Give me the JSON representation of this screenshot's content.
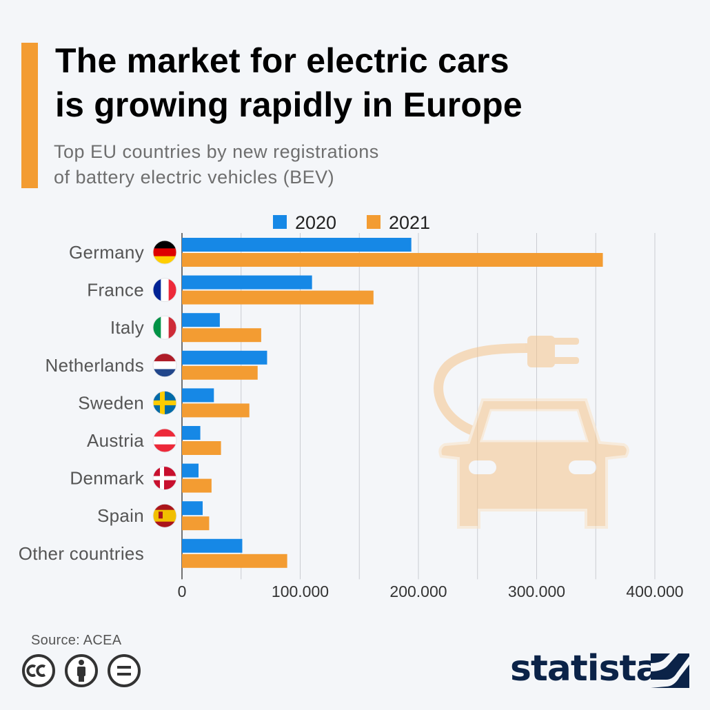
{
  "title_line1": "The market for electric cars",
  "title_line2": "is growing rapidly in Europe",
  "subtitle_line1": "Top EU countries by new registrations",
  "subtitle_line2": "of battery electric vehicles (BEV)",
  "source": "Source: ACEA",
  "brand": "statista",
  "colors": {
    "accent": "#f39c32",
    "series_2020": "#1688e6",
    "series_2021": "#f39c32",
    "brand": "#0b2348"
  },
  "chart_data": {
    "type": "bar",
    "orientation": "horizontal",
    "categories": [
      "Germany",
      "France",
      "Italy",
      "Netherlands",
      "Sweden",
      "Austria",
      "Denmark",
      "Spain",
      "Other countries"
    ],
    "flags": [
      "germany-flag",
      "france-flag",
      "italy-flag",
      "netherlands-flag",
      "sweden-flag",
      "austria-flag",
      "denmark-flag",
      "spain-flag",
      ""
    ],
    "series": [
      {
        "name": "2020",
        "values": [
          194000,
          110000,
          32000,
          72000,
          27000,
          15500,
          14000,
          17500,
          51000
        ]
      },
      {
        "name": "2021",
        "values": [
          356000,
          162000,
          67000,
          64000,
          57000,
          33000,
          25000,
          23000,
          89000
        ]
      }
    ],
    "xlim": [
      0,
      400000
    ],
    "xticks": [
      0,
      100000,
      200000,
      300000,
      400000
    ],
    "xtick_labels": [
      "0",
      "100.000",
      "200.000",
      "300.000",
      "400.000"
    ],
    "grid": true,
    "legend_position": "top-center"
  }
}
